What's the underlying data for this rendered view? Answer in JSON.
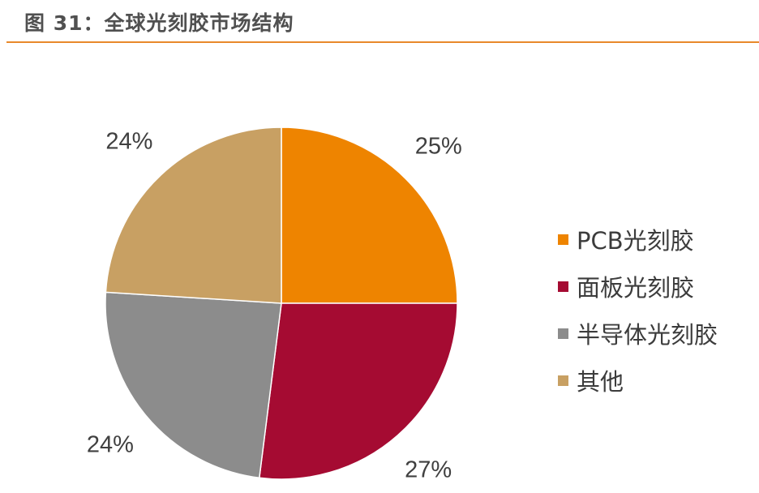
{
  "figure": {
    "title": "图 31：全球光刻胶市场结构"
  },
  "chart_data": {
    "type": "pie",
    "title": "",
    "categories": [
      "PCB光刻胶",
      "面板光刻胶",
      "半导体光刻胶",
      "其他"
    ],
    "values": [
      25,
      27,
      24,
      24
    ],
    "labels": [
      "25%",
      "27%",
      "24%",
      "24%"
    ],
    "colors": [
      "#ee8400",
      "#a50b32",
      "#8c8c8c",
      "#c8a063"
    ],
    "start": "12 o'clock",
    "direction": "clockwise",
    "legend_position": "right"
  }
}
